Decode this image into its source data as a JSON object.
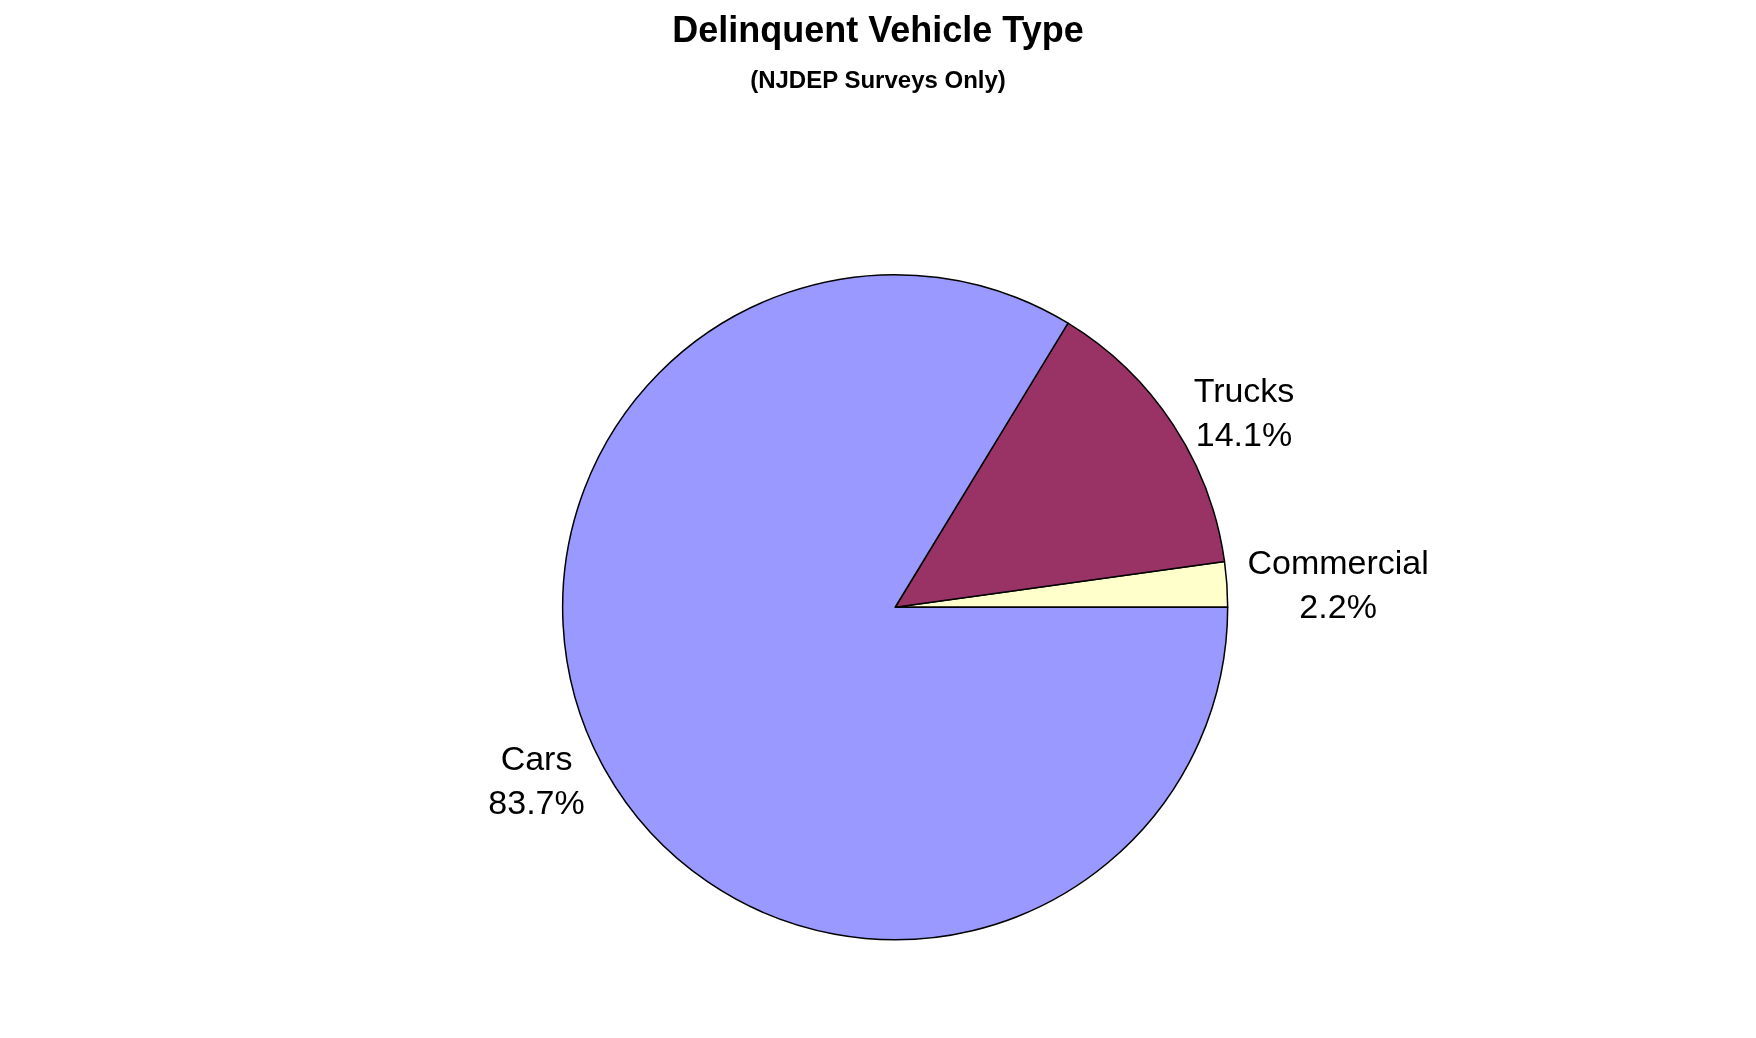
{
  "chart_data": {
    "type": "pie",
    "title": "Delinquent Vehicle Type",
    "subtitle": "(NJDEP Surveys Only)",
    "categories": [
      "Commercial",
      "Trucks",
      "Cars"
    ],
    "values": [
      2.2,
      14.1,
      83.7
    ],
    "value_labels": [
      "2.2%",
      "14.1%",
      "83.7%"
    ],
    "colors": [
      "#ffffcc",
      "#993366",
      "#9999ff"
    ],
    "legend": false
  }
}
